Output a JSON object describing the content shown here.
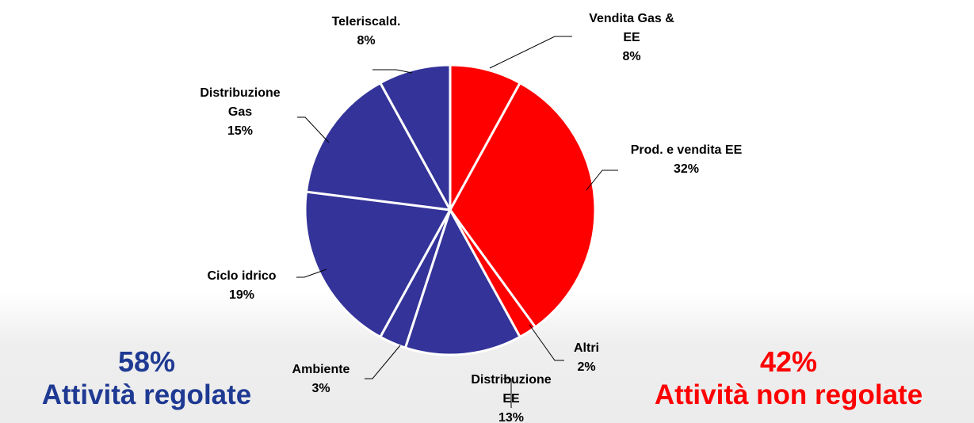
{
  "chart_data": {
    "type": "pie",
    "categories": [
      "Vendita Gas & EE",
      "Prod. e vendita EE",
      "Altri",
      "Distribuzione EE",
      "Ambiente",
      "Ciclo idrico",
      "Distribuzione Gas",
      "Teleriscald."
    ],
    "values": [
      8,
      32,
      2,
      13,
      3,
      19,
      15,
      8
    ],
    "value_labels": [
      "8%",
      "32%",
      "2%",
      "13%",
      "3%",
      "19%",
      "15%",
      "8%"
    ],
    "colors": [
      "#ff0000",
      "#ff0000",
      "#ff0000",
      "#333399",
      "#333399",
      "#333399",
      "#333399",
      "#333399"
    ],
    "annotations": [
      {
        "value": "58%",
        "text": "Attività regolate",
        "color": "#1f3a93"
      },
      {
        "value": "42%",
        "text": "Attività non regolate",
        "color": "#ff0000"
      }
    ]
  }
}
